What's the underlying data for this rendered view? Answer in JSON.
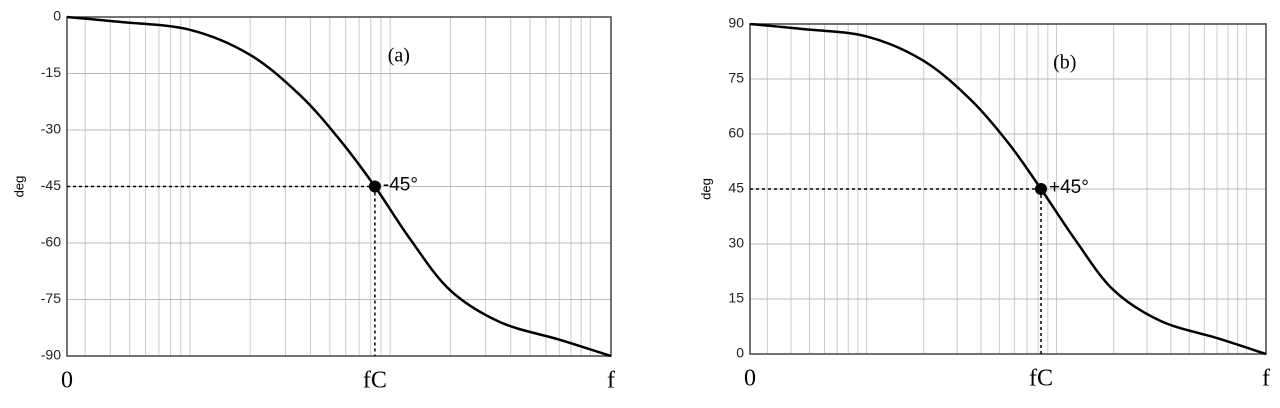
{
  "chart_data": [
    {
      "type": "line",
      "panel_label": "(a)",
      "ylabel": "deg",
      "x": [
        0,
        0.097,
        0.226,
        0.336,
        0.428,
        0.502,
        0.566,
        0.631,
        0.704,
        0.796,
        0.906,
        1
      ],
      "values": [
        0,
        -1.3,
        -3.4,
        -10,
        -20.7,
        -32.7,
        -45,
        -59,
        -72.5,
        -81,
        -85.7,
        -90
      ],
      "color": "#000000",
      "xlim": [
        0,
        1
      ],
      "xticks": [
        {
          "value": 0,
          "label": "0"
        },
        {
          "value": 0.566,
          "label": "fC"
        },
        {
          "value": 1,
          "label": "f"
        }
      ],
      "ylim": [
        -90,
        0
      ],
      "yticks": [
        0,
        -15,
        -30,
        -45,
        -60,
        -75,
        -90
      ],
      "grid": true,
      "marker": {
        "x": 0.566,
        "y": -45,
        "label": "-45°"
      }
    },
    {
      "type": "line",
      "panel_label": "(b)",
      "ylabel": "deg",
      "x": [
        0,
        0.097,
        0.226,
        0.336,
        0.428,
        0.502,
        0.564,
        0.631,
        0.704,
        0.796,
        0.906,
        1
      ],
      "values": [
        90,
        88.7,
        86.6,
        80,
        69.3,
        57.3,
        45,
        31,
        17.5,
        9,
        4.3,
        0
      ],
      "color": "#000000",
      "xlim": [
        0,
        1
      ],
      "xticks": [
        {
          "value": 0,
          "label": "0"
        },
        {
          "value": 0.564,
          "label": "fC"
        },
        {
          "value": 1,
          "label": "f"
        }
      ],
      "ylim": [
        0,
        90
      ],
      "yticks": [
        0,
        15,
        30,
        45,
        60,
        75,
        90
      ],
      "grid": true,
      "marker": {
        "x": 0.564,
        "y": 45,
        "label": "+45°"
      }
    }
  ]
}
